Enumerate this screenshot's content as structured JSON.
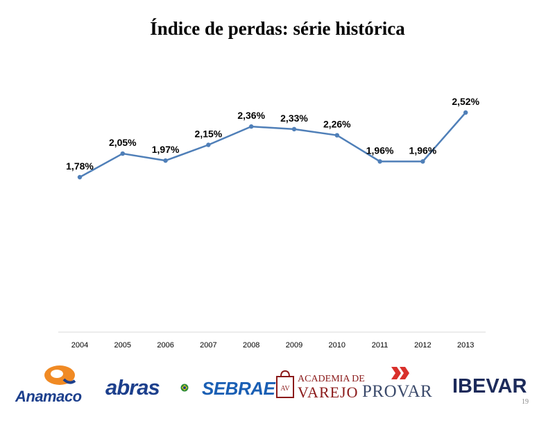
{
  "slide": {
    "title": "Índice de perdas: série histórica",
    "page_number": "19"
  },
  "chart_data": {
    "type": "line",
    "title": "Índice de perdas: série histórica",
    "xlabel": "",
    "ylabel": "",
    "categories": [
      "2004",
      "2005",
      "2006",
      "2007",
      "2008",
      "2009",
      "2010",
      "2011",
      "2012",
      "2013"
    ],
    "series": [
      {
        "values": [
          1.78,
          2.05,
          1.97,
          2.15,
          2.36,
          2.33,
          2.26,
          1.96,
          1.96,
          2.52
        ],
        "labels": [
          "1,78%",
          "2,05%",
          "1,97%",
          "2,15%",
          "2,36%",
          "2,33%",
          "2,26%",
          "1,96%",
          "1,96%",
          "2,52%"
        ],
        "color": "#4f7fb8"
      }
    ],
    "grid": false,
    "legend": "none",
    "axis_color": "#d9d9d9"
  },
  "logos": {
    "anamaco": "Anamaco",
    "abras": "abras",
    "sebrae": "SEBRAE",
    "academia_top": "ACADEMIA DE",
    "academia_bottom": "VAREJO",
    "academia_mark": "AV",
    "provar": "PROVAR",
    "ibevar": "IBEVAR",
    "colors": {
      "anamaco_blue": "#1c3f8c",
      "anamaco_orange": "#f08a24",
      "abras_blue": "#1c3f8c",
      "sebrae_blue": "#1a5fb4",
      "academia_red": "#8b1a1a",
      "provar_red": "#d9302b",
      "provar_gray": "#3b4a6b",
      "ibevar_navy": "#1c2a5a"
    }
  }
}
